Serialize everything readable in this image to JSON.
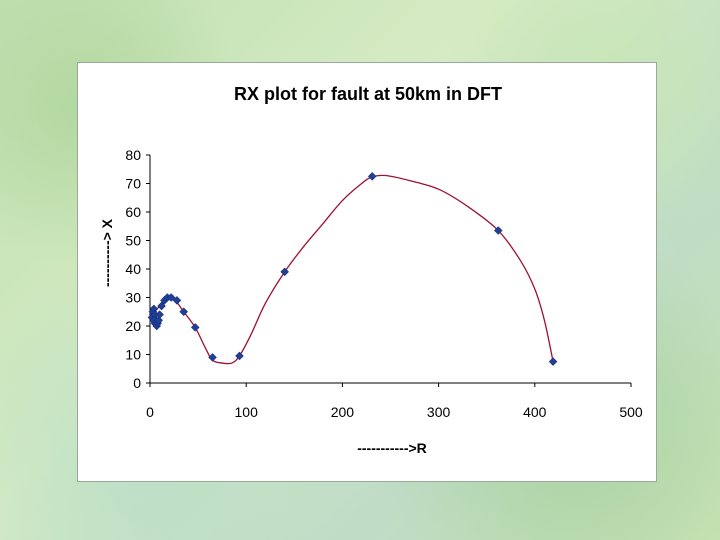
{
  "chart_data": {
    "type": "scatter",
    "title": "RX plot for fault at 50km in DFT",
    "xlabel": "----------->R",
    "ylabel": "----------> X",
    "xlim": [
      0,
      500
    ],
    "ylim": [
      0,
      80
    ],
    "x_ticks": [
      0,
      100,
      200,
      300,
      400,
      500
    ],
    "y_ticks": [
      0,
      10,
      20,
      30,
      40,
      50,
      60,
      70,
      80
    ],
    "grid": false,
    "legend": "none",
    "marker_color": "#1f3f99",
    "line_color": "#a01030",
    "points": [
      {
        "x": 2,
        "y": 23
      },
      {
        "x": 3,
        "y": 25
      },
      {
        "x": 4,
        "y": 26
      },
      {
        "x": 5,
        "y": 24
      },
      {
        "x": 6,
        "y": 22
      },
      {
        "x": 5,
        "y": 21
      },
      {
        "x": 4,
        "y": 22
      },
      {
        "x": 7,
        "y": 20
      },
      {
        "x": 8,
        "y": 21
      },
      {
        "x": 9,
        "y": 22
      },
      {
        "x": 10,
        "y": 24
      },
      {
        "x": 12,
        "y": 27
      },
      {
        "x": 15,
        "y": 29
      },
      {
        "x": 18,
        "y": 30
      },
      {
        "x": 22,
        "y": 30
      },
      {
        "x": 28,
        "y": 29
      },
      {
        "x": 35,
        "y": 25
      },
      {
        "x": 47,
        "y": 19.5
      },
      {
        "x": 65,
        "y": 9
      },
      {
        "x": 93,
        "y": 9.5
      },
      {
        "x": 140,
        "y": 39
      },
      {
        "x": 231,
        "y": 72.5
      },
      {
        "x": 362,
        "y": 53.5
      },
      {
        "x": 419,
        "y": 7.5
      }
    ],
    "curve": [
      [
        2,
        23
      ],
      [
        5,
        25
      ],
      [
        10,
        27
      ],
      [
        18,
        30
      ],
      [
        25,
        29.5
      ],
      [
        35,
        25
      ],
      [
        47,
        19.5
      ],
      [
        58,
        12
      ],
      [
        65,
        8
      ],
      [
        75,
        7
      ],
      [
        85,
        7
      ],
      [
        93,
        9.5
      ],
      [
        105,
        17
      ],
      [
        120,
        28
      ],
      [
        140,
        39
      ],
      [
        160,
        48
      ],
      [
        180,
        56
      ],
      [
        200,
        64
      ],
      [
        220,
        70
      ],
      [
        231,
        72.3
      ],
      [
        245,
        72.8
      ],
      [
        270,
        71
      ],
      [
        300,
        68
      ],
      [
        330,
        62
      ],
      [
        362,
        53.5
      ],
      [
        385,
        43
      ],
      [
        400,
        33
      ],
      [
        410,
        22
      ],
      [
        419,
        7.5
      ]
    ]
  }
}
